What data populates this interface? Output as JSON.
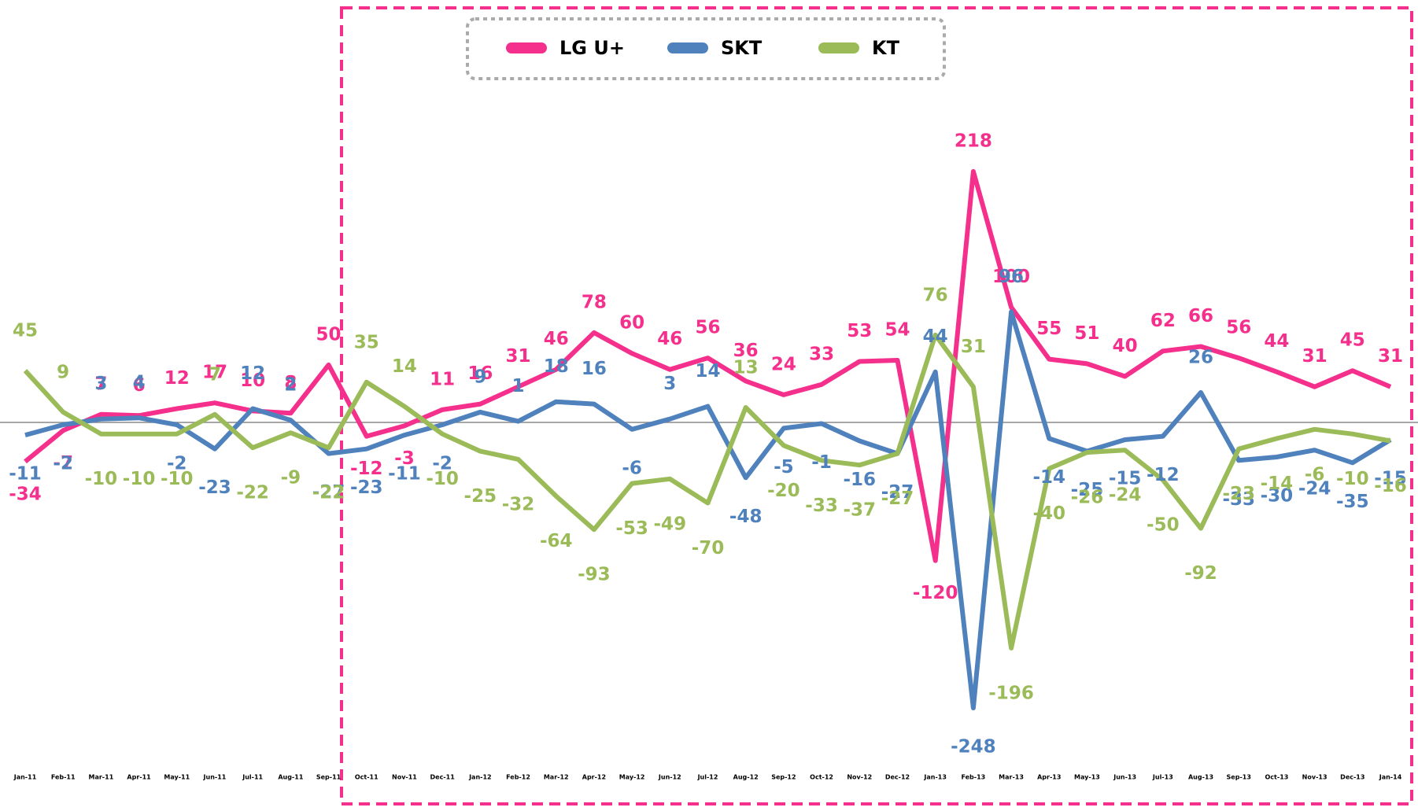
{
  "chart_data": {
    "type": "line",
    "categories": [
      "Jan-11",
      "Feb-11",
      "Mar-11",
      "Apr-11",
      "May-11",
      "Jun-11",
      "Jul-11",
      "Aug-11",
      "Sep-11",
      "Oct-11",
      "Nov-11",
      "Dec-11",
      "Jan-12",
      "Feb-12",
      "Mar-12",
      "Apr-12",
      "May-12",
      "Jun-12",
      "Jul-12",
      "Aug-12",
      "Sep-12",
      "Oct-12",
      "Nov-12",
      "Dec-12",
      "Jan-13",
      "Feb-13",
      "Mar-13",
      "Apr-13",
      "May-13",
      "Jun-13",
      "Jul-13",
      "Aug-13",
      "Sep-13",
      "Oct-13",
      "Nov-13",
      "Dec-13",
      "Jan-14"
    ],
    "series": [
      {
        "name": "LG U+",
        "color": "#f52f8c",
        "values": [
          -34,
          -7,
          7,
          6,
          12,
          17,
          10,
          8,
          50,
          -12,
          -3,
          11,
          16,
          31,
          46,
          78,
          60,
          46,
          56,
          36,
          24,
          33,
          53,
          54,
          -120,
          218,
          100,
          55,
          51,
          40,
          62,
          66,
          56,
          44,
          31,
          45,
          31
        ]
      },
      {
        "name": "SKT",
        "color": "#4f81bd",
        "values": [
          -11,
          -2,
          3,
          4,
          -2,
          -23,
          12,
          2,
          -27,
          -23,
          -11,
          -2,
          9,
          1,
          18,
          16,
          -6,
          3,
          14,
          -48,
          -5,
          -1,
          -16,
          -27,
          44,
          -248,
          96,
          -14,
          -25,
          -15,
          -12,
          26,
          -33,
          -30,
          -24,
          -35,
          -15
        ]
      },
      {
        "name": "KT",
        "color": "#9bbb59",
        "values": [
          45,
          9,
          -10,
          -10,
          -10,
          7,
          -22,
          -9,
          -22,
          35,
          14,
          -10,
          -25,
          -32,
          -64,
          -93,
          -53,
          -49,
          -70,
          13,
          -20,
          -33,
          -37,
          -27,
          76,
          31,
          -196,
          -40,
          -26,
          -24,
          -50,
          -92,
          -23,
          -14,
          -6,
          -10,
          -16
        ]
      }
    ],
    "legend": "top"
  }
}
